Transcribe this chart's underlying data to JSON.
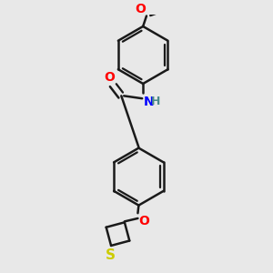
{
  "background_color": "#e8e8e8",
  "line_color": "#1a1a1a",
  "bond_width": 1.8,
  "atom_colors": {
    "O": "#ff0000",
    "N": "#0000ff",
    "S": "#cccc00",
    "H": "#4a8a8a"
  },
  "font_size": 10,
  "fig_width": 3.0,
  "fig_height": 3.0,
  "dpi": 100
}
